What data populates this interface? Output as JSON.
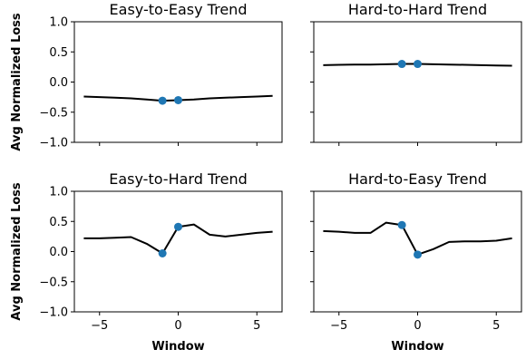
{
  "chart_data": [
    {
      "type": "line",
      "title": "Easy-to-Easy Trend",
      "xlabel": "",
      "ylabel": "Avg Normalized Loss",
      "xlim": [
        -6.6,
        6.6
      ],
      "ylim": [
        -1.0,
        1.0
      ],
      "xticks": [
        -5,
        0,
        5
      ],
      "yticks": [
        -1.0,
        -0.5,
        0.0,
        0.5,
        1.0
      ],
      "ytick_labels": [
        "−1.0",
        "−0.5",
        "0.0",
        "0.5",
        "1.0"
      ],
      "xtick_labels": [
        "",
        "",
        ""
      ],
      "x": [
        -6,
        -5,
        -4,
        -3,
        -2,
        -1,
        0,
        1,
        2,
        3,
        4,
        5,
        6
      ],
      "y": [
        -0.24,
        -0.25,
        -0.26,
        -0.27,
        -0.29,
        -0.31,
        -0.3,
        -0.29,
        -0.27,
        -0.26,
        -0.25,
        -0.24,
        -0.23
      ],
      "markers": {
        "x": [
          -1,
          0
        ],
        "y": [
          -0.31,
          -0.3
        ]
      },
      "line_color": "#000000",
      "marker_color": "#1f77b4"
    },
    {
      "type": "line",
      "title": "Hard-to-Hard Trend",
      "xlabel": "",
      "ylabel": "",
      "xlim": [
        -6.6,
        6.6
      ],
      "ylim": [
        -1.0,
        1.0
      ],
      "xticks": [
        -5,
        0,
        5
      ],
      "yticks": [
        -1.0,
        -0.5,
        0.0,
        0.5,
        1.0
      ],
      "ytick_labels": [
        "",
        "",
        "",
        "",
        ""
      ],
      "xtick_labels": [
        "",
        "",
        ""
      ],
      "x": [
        -6,
        -5,
        -4,
        -3,
        -2,
        -1,
        0,
        1,
        2,
        3,
        4,
        5,
        6
      ],
      "y": [
        0.28,
        0.285,
        0.29,
        0.29,
        0.295,
        0.3,
        0.3,
        0.295,
        0.29,
        0.285,
        0.28,
        0.275,
        0.27
      ],
      "markers": {
        "x": [
          -1,
          0
        ],
        "y": [
          0.3,
          0.3
        ]
      },
      "line_color": "#000000",
      "marker_color": "#1f77b4"
    },
    {
      "type": "line",
      "title": "Easy-to-Hard Trend",
      "xlabel": "Window",
      "ylabel": "Avg Normalized Loss",
      "xlim": [
        -6.6,
        6.6
      ],
      "ylim": [
        -1.0,
        1.0
      ],
      "xticks": [
        -5,
        0,
        5
      ],
      "yticks": [
        -1.0,
        -0.5,
        0.0,
        0.5,
        1.0
      ],
      "ytick_labels": [
        "−1.0",
        "−0.5",
        "0.0",
        "0.5",
        "1.0"
      ],
      "xtick_labels": [
        "−5",
        "0",
        "5"
      ],
      "x": [
        -6,
        -5,
        -4,
        -3,
        -2,
        -1,
        0,
        1,
        2,
        3,
        4,
        5,
        6
      ],
      "y": [
        0.22,
        0.22,
        0.23,
        0.24,
        0.13,
        -0.03,
        0.41,
        0.45,
        0.28,
        0.25,
        0.28,
        0.31,
        0.33
      ],
      "markers": {
        "x": [
          -1,
          0
        ],
        "y": [
          -0.03,
          0.41
        ]
      },
      "line_color": "#000000",
      "marker_color": "#1f77b4"
    },
    {
      "type": "line",
      "title": "Hard-to-Easy Trend",
      "xlabel": "Window",
      "ylabel": "",
      "xlim": [
        -6.6,
        6.6
      ],
      "ylim": [
        -1.0,
        1.0
      ],
      "xticks": [
        -5,
        0,
        5
      ],
      "yticks": [
        -1.0,
        -0.5,
        0.0,
        0.5,
        1.0
      ],
      "ytick_labels": [
        "",
        "",
        "",
        "",
        ""
      ],
      "xtick_labels": [
        "−5",
        "0",
        "5"
      ],
      "x": [
        -6,
        -5,
        -4,
        -3,
        -2,
        -1,
        0,
        1,
        2,
        3,
        4,
        5,
        6
      ],
      "y": [
        0.34,
        0.33,
        0.31,
        0.31,
        0.48,
        0.44,
        -0.05,
        0.04,
        0.16,
        0.17,
        0.17,
        0.18,
        0.22
      ],
      "markers": {
        "x": [
          -1,
          0
        ],
        "y": [
          0.44,
          -0.05
        ]
      },
      "line_color": "#000000",
      "marker_color": "#1f77b4"
    }
  ]
}
